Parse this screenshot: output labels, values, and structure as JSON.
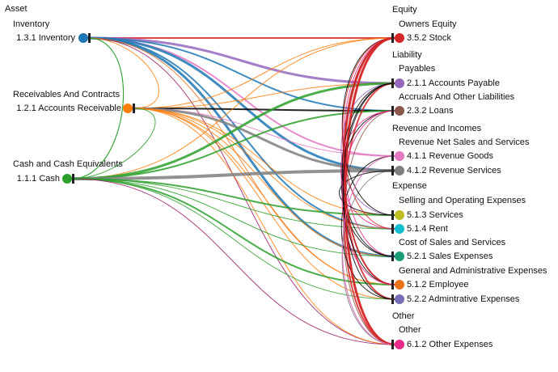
{
  "left_nodes": [
    {
      "id": "inventory",
      "group": "Asset",
      "subgroup": "Inventory",
      "label": "1.3.1 Inventory",
      "color": "#1f77b4"
    },
    {
      "id": "receivable",
      "group": "",
      "subgroup": "Receivables And Contracts",
      "label": "1.2.1 Accounts Receivable",
      "color": "#ff7f0e"
    },
    {
      "id": "cash",
      "group": "",
      "subgroup": "Cash and Cash Equivalents",
      "label": "1.1.1 Cash",
      "color": "#2ca02c"
    }
  ],
  "right_nodes": [
    {
      "id": "stock",
      "group": "Equity",
      "subgroup": "Owners Equity",
      "label": "3.5.2 Stock",
      "color": "#d62728"
    },
    {
      "id": "payable",
      "group": "Liability",
      "subgroup": "Payables",
      "label": "2.1.1 Accounts Payable",
      "color": "#9467bd"
    },
    {
      "id": "loans",
      "group": "",
      "subgroup": "Accruals And Other Liabilities",
      "label": "2.3.2 Loans",
      "color": "#8c564b"
    },
    {
      "id": "revgoods",
      "group": "Revenue and Incomes",
      "subgroup": "Revenue Net Sales and Services",
      "label": "4.1.1 Revenue Goods",
      "color": "#e377c2"
    },
    {
      "id": "revservices",
      "group": "",
      "subgroup": "",
      "label": "4.1.2 Revenue Services",
      "color": "#7f7f7f"
    },
    {
      "id": "services",
      "group": "Expense",
      "subgroup": "Selling and Operating Expenses",
      "label": "5.1.3 Services",
      "color": "#bcbd22"
    },
    {
      "id": "rent",
      "group": "",
      "subgroup": "",
      "label": "5.1.4 Rent",
      "color": "#17becf"
    },
    {
      "id": "salesexp",
      "group": "",
      "subgroup": "Cost of Sales and Services",
      "label": "5.2.1 Sales Expenses",
      "color": "#1a9e77"
    },
    {
      "id": "employee",
      "group": "",
      "subgroup": "General and Administrative Expenses",
      "label": "5.1.2 Employee",
      "color": "#e8711a"
    },
    {
      "id": "admin",
      "group": "",
      "subgroup": "",
      "label": "5.2.2 Admintrative Expenses",
      "color": "#7570b3"
    },
    {
      "id": "otherexp",
      "group": "Other",
      "subgroup": "Other",
      "label": "6.1.2 Other Expenses",
      "color": "#e7298a"
    }
  ],
  "flows": [
    {
      "from": "inventory",
      "to": "stock",
      "weight": 2,
      "color": "#d62728"
    },
    {
      "from": "inventory",
      "to": "payable",
      "weight": 3,
      "color": "#9467bd"
    },
    {
      "from": "inventory",
      "to": "loans",
      "weight": 2,
      "color": "#1f77b4"
    },
    {
      "from": "inventory",
      "to": "revgoods",
      "weight": 2,
      "color": "#e377c2"
    },
    {
      "from": "inventory",
      "to": "revservices",
      "weight": 3,
      "color": "#1f77b4"
    },
    {
      "from": "inventory",
      "to": "rent",
      "weight": 2,
      "color": "#1f77b4"
    },
    {
      "from": "inventory",
      "to": "salesexp",
      "weight": 3,
      "color": "#1f77b4"
    },
    {
      "from": "inventory",
      "to": "employee",
      "weight": 1,
      "color": "#e8711a"
    },
    {
      "from": "inventory",
      "to": "otherexp",
      "weight": 1,
      "color": "#9c1f6a"
    },
    {
      "from": "inventory",
      "to": "cash",
      "weight": 1,
      "color": "#2ca02c"
    },
    {
      "from": "receivable",
      "to": "stock",
      "weight": 1,
      "color": "#ff7f0e"
    },
    {
      "from": "receivable",
      "to": "payable",
      "weight": 1,
      "color": "#ff7f0e"
    },
    {
      "from": "receivable",
      "to": "loans",
      "weight": 2,
      "color": "#000000"
    },
    {
      "from": "receivable",
      "to": "revgoods",
      "weight": 1,
      "color": "#e377c2"
    },
    {
      "from": "receivable",
      "to": "revservices",
      "weight": 3,
      "color": "#7f7f7f"
    },
    {
      "from": "receivable",
      "to": "services",
      "weight": 1,
      "color": "#ff7f0e"
    },
    {
      "from": "receivable",
      "to": "rent",
      "weight": 1,
      "color": "#ff7f0e"
    },
    {
      "from": "receivable",
      "to": "salesexp",
      "weight": 1,
      "color": "#ff7f0e"
    },
    {
      "from": "receivable",
      "to": "employee",
      "weight": 1,
      "color": "#ff7f0e"
    },
    {
      "from": "receivable",
      "to": "admin",
      "weight": 1,
      "color": "#ff7f0e"
    },
    {
      "from": "receivable",
      "to": "otherexp",
      "weight": 1,
      "color": "#ff7f0e"
    },
    {
      "from": "receivable",
      "to": "inventory",
      "weight": 1,
      "color": "#ff7f0e"
    },
    {
      "from": "cash",
      "to": "stock",
      "weight": 1,
      "color": "#ff7f0e"
    },
    {
      "from": "cash",
      "to": "payable",
      "weight": 3,
      "color": "#2ca02c"
    },
    {
      "from": "cash",
      "to": "loans",
      "weight": 2,
      "color": "#2ca02c"
    },
    {
      "from": "cash",
      "to": "revservices",
      "weight": 4,
      "color": "#7f7f7f"
    },
    {
      "from": "cash",
      "to": "services",
      "weight": 2,
      "color": "#2ca02c"
    },
    {
      "from": "cash",
      "to": "rent",
      "weight": 1,
      "color": "#2ca02c"
    },
    {
      "from": "cash",
      "to": "salesexp",
      "weight": 1,
      "color": "#2ca02c"
    },
    {
      "from": "cash",
      "to": "employee",
      "weight": 2,
      "color": "#2ca02c"
    },
    {
      "from": "cash",
      "to": "admin",
      "weight": 1,
      "color": "#2ca02c"
    },
    {
      "from": "cash",
      "to": "otherexp",
      "weight": 1,
      "color": "#9c1f6a"
    },
    {
      "from": "cash",
      "to": "receivable",
      "weight": 1,
      "color": "#2ca02c"
    },
    {
      "from": "cash",
      "to": "inventory",
      "weight": 1,
      "color": "#2ca02c"
    }
  ],
  "right_side_links": [
    {
      "from": "stock",
      "to": "otherexp",
      "weight": 3,
      "color": "#d62728"
    },
    {
      "from": "stock",
      "to": "admin",
      "weight": 2,
      "color": "#d62728"
    },
    {
      "from": "stock",
      "to": "employee",
      "weight": 1,
      "color": "#000000"
    },
    {
      "from": "stock",
      "to": "salesexp",
      "weight": 1,
      "color": "#e7298a"
    },
    {
      "from": "payable",
      "to": "otherexp",
      "weight": 2,
      "color": "#d62728"
    },
    {
      "from": "payable",
      "to": "employee",
      "weight": 1,
      "color": "#000000"
    },
    {
      "from": "payable",
      "to": "services",
      "weight": 1,
      "color": "#9467bd"
    },
    {
      "from": "loans",
      "to": "otherexp",
      "weight": 1,
      "color": "#8c564b"
    },
    {
      "from": "loans",
      "to": "salesexp",
      "weight": 1,
      "color": "#000000"
    },
    {
      "from": "loans",
      "to": "rent",
      "weight": 1,
      "color": "#e7298a"
    },
    {
      "from": "revgoods",
      "to": "otherexp",
      "weight": 1,
      "color": "#e377c2"
    },
    {
      "from": "revgoods",
      "to": "admin",
      "weight": 1,
      "color": "#000000"
    },
    {
      "from": "revservices",
      "to": "otherexp",
      "weight": 1,
      "color": "#7f7f7f"
    },
    {
      "from": "revservices",
      "to": "services",
      "weight": 1,
      "color": "#000000"
    },
    {
      "from": "services",
      "to": "stock",
      "weight": 1,
      "color": "#000000"
    },
    {
      "from": "rent",
      "to": "stock",
      "weight": 1,
      "color": "#d62728"
    },
    {
      "from": "salesexp",
      "to": "payable",
      "weight": 1,
      "color": "#000000"
    },
    {
      "from": "employee",
      "to": "stock",
      "weight": 2,
      "color": "#d62728"
    },
    {
      "from": "employee",
      "to": "loans",
      "weight": 1,
      "color": "#e7298a"
    },
    {
      "from": "admin",
      "to": "payable",
      "weight": 1,
      "color": "#000000"
    },
    {
      "from": "otherexp",
      "to": "stock",
      "weight": 2,
      "color": "#d62728"
    },
    {
      "from": "otherexp",
      "to": "revgoods",
      "weight": 1,
      "color": "#e377c2"
    }
  ]
}
